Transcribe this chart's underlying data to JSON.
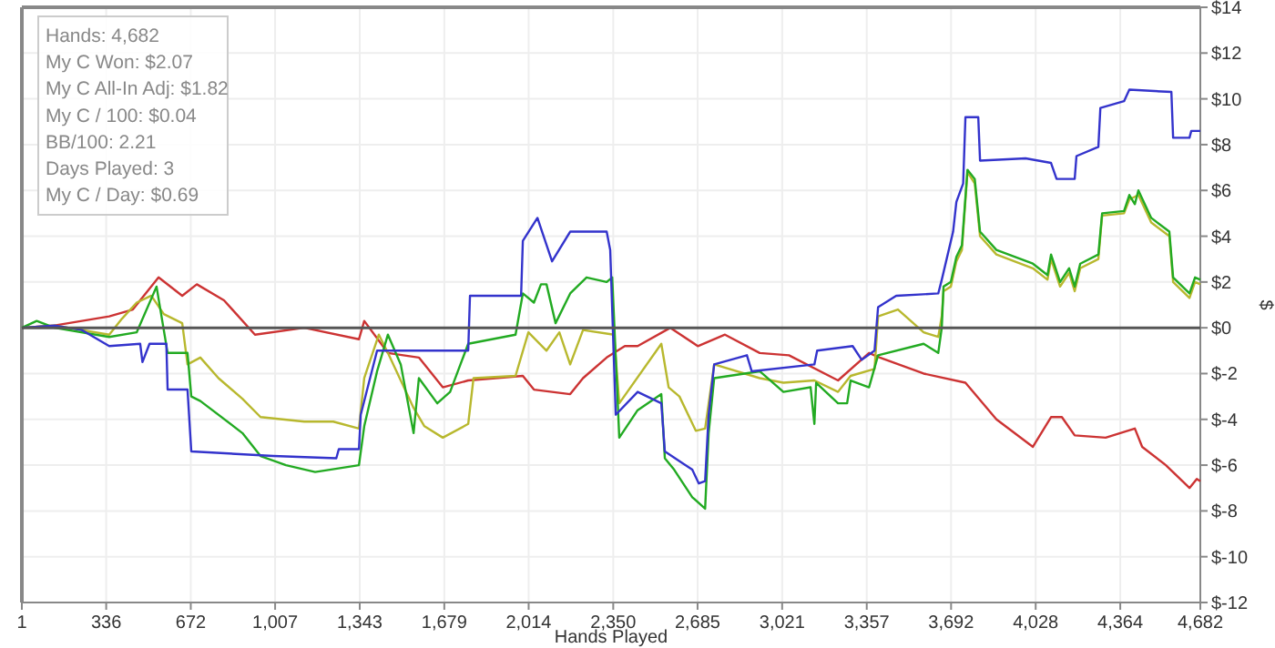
{
  "chart_data": {
    "type": "line",
    "xlabel": "Hands Played",
    "ylabel": "$",
    "annotations": [
      "Hands: 4,682",
      "My C Won: $2.07",
      "My C All-In Adj: $1.82",
      "My C / 100: $0.04",
      "BB/100: 2.21",
      "Days Played: 3",
      "My C / Day: $0.69"
    ],
    "xlim": [
      1,
      4682
    ],
    "xticks": [
      {
        "value": 1,
        "label": "1"
      },
      {
        "value": 336,
        "label": "336"
      },
      {
        "value": 672,
        "label": "672"
      },
      {
        "value": 1007,
        "label": "1,007"
      },
      {
        "value": 1343,
        "label": "1,343"
      },
      {
        "value": 1679,
        "label": "1,679"
      },
      {
        "value": 2014,
        "label": "2,014"
      },
      {
        "value": 2350,
        "label": "2,350"
      },
      {
        "value": 2685,
        "label": "2,685"
      },
      {
        "value": 3021,
        "label": "3,021"
      },
      {
        "value": 3357,
        "label": "3,357"
      },
      {
        "value": 3692,
        "label": "3,692"
      },
      {
        "value": 4028,
        "label": "4,028"
      },
      {
        "value": 4364,
        "label": "4,364"
      },
      {
        "value": 4682,
        "label": "4,682"
      }
    ],
    "ylim": [
      -12,
      14
    ],
    "yticks": [
      {
        "value": -12,
        "label": "$-12"
      },
      {
        "value": -10,
        "label": "$-10"
      },
      {
        "value": -8,
        "label": "$-8"
      },
      {
        "value": -6,
        "label": "$-6"
      },
      {
        "value": -4,
        "label": "$-4"
      },
      {
        "value": -2,
        "label": "$-2"
      },
      {
        "value": 0,
        "label": "$0"
      },
      {
        "value": 2,
        "label": "$2"
      },
      {
        "value": 4,
        "label": "$4"
      },
      {
        "value": 6,
        "label": "$6"
      },
      {
        "value": 8,
        "label": "$8"
      },
      {
        "value": 10,
        "label": "$10"
      },
      {
        "value": 12,
        "label": "$12"
      },
      {
        "value": 14,
        "label": "$14"
      }
    ],
    "grid": true,
    "marker": "none",
    "line_style": "solid",
    "ref_lines": [
      {
        "axis": "y",
        "value": 0,
        "color": "#555555"
      }
    ],
    "series": [
      {
        "color": "#cc3333",
        "x": [
          1,
          131,
          348,
          442,
          544,
          638,
          696,
          804,
          927,
          1123,
          1340,
          1361,
          1455,
          1578,
          1673,
          1774,
          1991,
          2035,
          2179,
          2230,
          2324,
          2396,
          2447,
          2577,
          2686,
          2794,
          2932,
          3048,
          3243,
          3366,
          3409,
          3583,
          3749,
          3872,
          4017,
          4089,
          4132,
          4183,
          4306,
          4422,
          4451,
          4545,
          4639,
          4668,
          4682
        ],
        "values": [
          0,
          0.1,
          0.5,
          0.8,
          2.2,
          1.4,
          1.9,
          1.2,
          -0.3,
          0,
          -0.5,
          0.3,
          -1.1,
          -1.3,
          -2.6,
          -2.3,
          -2.1,
          -2.7,
          -2.9,
          -2.2,
          -1.3,
          -0.8,
          -0.8,
          0,
          -0.8,
          -0.3,
          -1.1,
          -1.2,
          -2.3,
          -1.1,
          -1.3,
          -2.0,
          -2.4,
          -4.0,
          -5.2,
          -3.9,
          -3.9,
          -4.7,
          -4.8,
          -4.4,
          -5.2,
          -6.0,
          -7.0,
          -6.6,
          -6.7
        ]
      },
      {
        "color": "#b8b82e",
        "x": [
          1,
          131,
          348,
          399,
          457,
          515,
          565,
          638,
          659,
          710,
          782,
          877,
          949,
          1123,
          1238,
          1340,
          1361,
          1419,
          1455,
          1557,
          1600,
          1673,
          1774,
          1795,
          1962,
          2013,
          2085,
          2136,
          2179,
          2230,
          2353,
          2374,
          2541,
          2570,
          2613,
          2678,
          2715,
          2751,
          2932,
          3026,
          3149,
          3243,
          3293,
          3388,
          3402,
          3481,
          3583,
          3641,
          3655,
          3662,
          3691,
          3713,
          3735,
          3757,
          3786,
          3807,
          3872,
          4017,
          4075,
          4089,
          4125,
          4161,
          4183,
          4205,
          4277,
          4292,
          4379,
          4400,
          4436,
          4487,
          4559,
          4574,
          4639,
          4661,
          4682
        ],
        "values": [
          0,
          0.1,
          -0.3,
          0.4,
          1.1,
          1.4,
          0.6,
          0.2,
          -1.6,
          -1.3,
          -2.2,
          -3.1,
          -3.9,
          -4.1,
          -4.1,
          -4.4,
          -2.2,
          -0.3,
          -1.1,
          -3.5,
          -4.3,
          -4.8,
          -4.2,
          -2.2,
          -2.1,
          -0.2,
          -1.0,
          -0.2,
          -1.6,
          -0.1,
          -0.3,
          -3.3,
          -0.7,
          -2.6,
          -3.0,
          -4.5,
          -4.4,
          -1.6,
          -2.2,
          -2.4,
          -2.3,
          -2.8,
          -2.1,
          -1.8,
          0.5,
          0.8,
          -0.2,
          -0.4,
          0.5,
          1.6,
          1.8,
          2.9,
          3.4,
          6.8,
          6.3,
          4.0,
          3.2,
          2.6,
          2.1,
          3.0,
          1.8,
          2.4,
          1.6,
          2.6,
          3.0,
          4.9,
          5.0,
          5.6,
          5.8,
          4.6,
          4.0,
          2.0,
          1.3,
          2.0,
          1.9
        ]
      },
      {
        "color": "#22aa22",
        "x": [
          1,
          60,
          131,
          348,
          457,
          536,
          580,
          659,
          674,
          710,
          877,
          949,
          1050,
          1166,
          1340,
          1361,
          1412,
          1455,
          1506,
          1557,
          1578,
          1651,
          1702,
          1774,
          1962,
          1991,
          2035,
          2063,
          2085,
          2121,
          2179,
          2244,
          2324,
          2346,
          2374,
          2447,
          2541,
          2555,
          2592,
          2664,
          2715,
          2729,
          2751,
          2932,
          3026,
          3134,
          3149,
          3156,
          3243,
          3279,
          3293,
          3366,
          3402,
          3583,
          3641,
          3655,
          3662,
          3691,
          3713,
          3735,
          3757,
          3786,
          3807,
          3872,
          4017,
          4075,
          4089,
          4125,
          4161,
          4183,
          4205,
          4277,
          4292,
          4379,
          4400,
          4422,
          4436,
          4487,
          4559,
          4574,
          4639,
          4661,
          4682
        ],
        "values": [
          0,
          0.3,
          0,
          -0.4,
          -0.2,
          1.8,
          -1.1,
          -1.1,
          -3.0,
          -3.2,
          -4.6,
          -5.6,
          -6.0,
          -6.3,
          -6.0,
          -4.3,
          -1.9,
          -0.3,
          -1.6,
          -4.6,
          -2.2,
          -3.3,
          -2.8,
          -0.7,
          -0.3,
          1.5,
          1.1,
          1.9,
          1.9,
          0.2,
          1.5,
          2.2,
          2.0,
          2.2,
          -4.8,
          -3.6,
          -2.9,
          -5.7,
          -6.2,
          -7.4,
          -7.9,
          -4.6,
          -2.2,
          -1.9,
          -2.8,
          -2.6,
          -4.2,
          -2.4,
          -3.3,
          -3.3,
          -2.3,
          -2.6,
          -1.2,
          -0.7,
          -1.1,
          0,
          1.8,
          2.0,
          3.1,
          3.6,
          6.9,
          6.5,
          4.2,
          3.4,
          2.8,
          2.3,
          3.2,
          2.0,
          2.6,
          1.8,
          2.8,
          3.2,
          5.0,
          5.1,
          5.8,
          5.4,
          6.0,
          4.8,
          4.2,
          2.2,
          1.5,
          2.2,
          2.1
        ]
      },
      {
        "color": "#3333cc",
        "x": [
          1,
          131,
          240,
          348,
          471,
          480,
          508,
          575,
          580,
          659,
          674,
          1000,
          1250,
          1260,
          1340,
          1347,
          1412,
          1557,
          1774,
          1781,
          1984,
          1991,
          2049,
          2107,
          2179,
          2324,
          2338,
          2360,
          2447,
          2541,
          2555,
          2664,
          2690,
          2715,
          2729,
          2751,
          2881,
          2900,
          3149,
          3160,
          3301,
          3337,
          3388,
          3402,
          3474,
          3641,
          3655,
          3700,
          3713,
          3740,
          3749,
          3800,
          3807,
          3988,
          4089,
          4111,
          4183,
          4190,
          4277,
          4285,
          4379,
          4400,
          4567,
          4574,
          4639,
          4646,
          4682
        ],
        "values": [
          0,
          0.1,
          -0.1,
          -0.8,
          -0.7,
          -1.5,
          -0.7,
          -0.7,
          -2.7,
          -2.7,
          -5.4,
          -5.6,
          -5.7,
          -5.3,
          -5.3,
          -3.8,
          -1.0,
          -1.0,
          -1.0,
          1.4,
          1.4,
          3.8,
          4.8,
          2.9,
          4.2,
          4.2,
          3.4,
          -3.8,
          -2.8,
          -3.3,
          -5.4,
          -6.2,
          -6.8,
          -6.7,
          -3.8,
          -1.6,
          -1.2,
          -1.9,
          -1.6,
          -1.0,
          -0.8,
          -1.4,
          -1.0,
          0.9,
          1.4,
          1.5,
          2.1,
          4.2,
          5.5,
          6.3,
          9.2,
          9.2,
          7.3,
          7.4,
          7.2,
          6.5,
          6.5,
          7.5,
          7.9,
          9.6,
          9.9,
          10.4,
          10.3,
          8.3,
          8.3,
          8.6,
          8.6
        ]
      }
    ]
  }
}
